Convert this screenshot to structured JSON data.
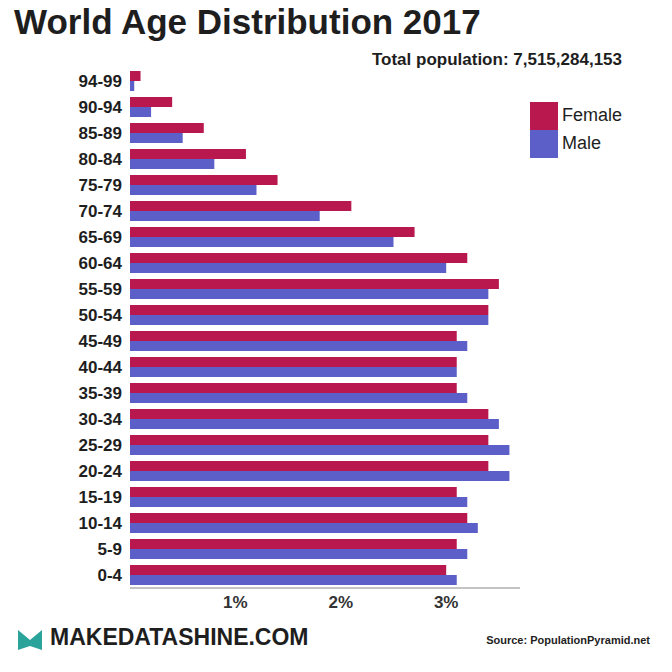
{
  "chart_data": {
    "type": "bar",
    "orientation": "horizontal",
    "title": "World Age Distribution 2017",
    "subtitle": "Total population: 7,515,284,153",
    "footer": "MAKEDATASHINE.COM",
    "source": "Source: PopulationPyramid.net",
    "categories": [
      "94-99",
      "90-94",
      "85-89",
      "80-84",
      "75-79",
      "70-74",
      "65-69",
      "60-64",
      "55-59",
      "50-54",
      "45-49",
      "40-44",
      "35-39",
      "30-34",
      "25-29",
      "20-24",
      "15-19",
      "10-14",
      "5-9",
      "0-4"
    ],
    "series": [
      {
        "name": "Female",
        "color": "#b8184e",
        "values": [
          0.1,
          0.4,
          0.7,
          1.1,
          1.4,
          2.1,
          2.7,
          3.2,
          3.5,
          3.4,
          3.1,
          3.1,
          3.1,
          3.4,
          3.4,
          3.4,
          3.1,
          3.2,
          3.1,
          3.0
        ]
      },
      {
        "name": "Male",
        "color": "#5b5fc7",
        "values": [
          0.04,
          0.2,
          0.5,
          0.8,
          1.2,
          1.8,
          2.5,
          3.0,
          3.4,
          3.4,
          3.2,
          3.1,
          3.2,
          3.5,
          3.6,
          3.6,
          3.2,
          3.3,
          3.2,
          3.1
        ]
      }
    ],
    "xlim": [
      0,
      3.7
    ],
    "xticks": [
      {
        "value": 1,
        "label": "1%"
      },
      {
        "value": 2,
        "label": "2%"
      },
      {
        "value": 3,
        "label": "3%"
      }
    ],
    "legend": "upper right",
    "grid": false
  }
}
